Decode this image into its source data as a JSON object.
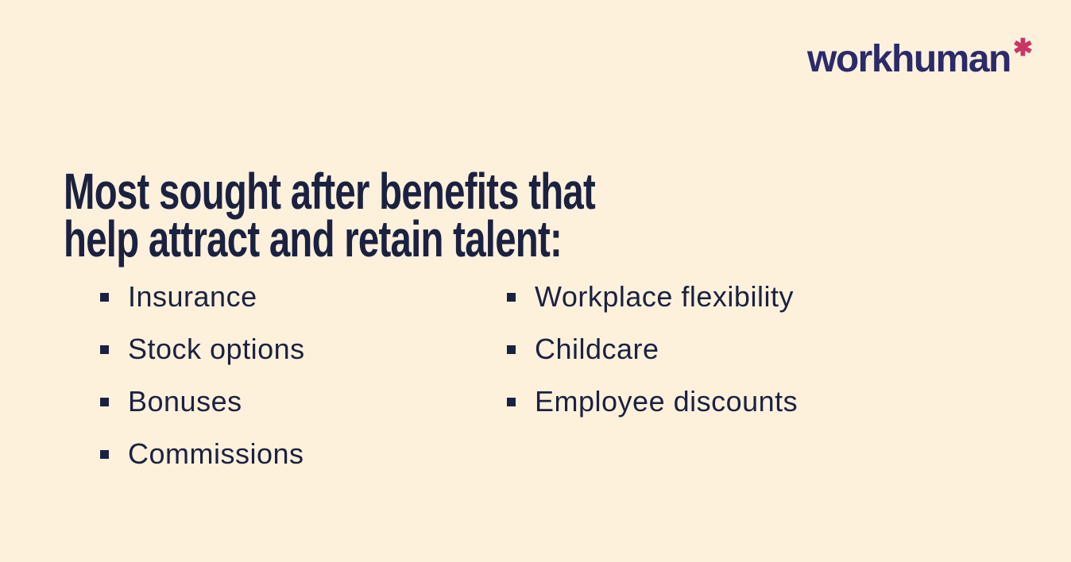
{
  "canvas": {
    "background_color": "#fdf1dc"
  },
  "logo": {
    "text": "workhuman",
    "asterisk_glyph": "✱",
    "text_color": "#2b2a6a",
    "asterisk_color": "#c93666"
  },
  "heading": {
    "line1": "Most sought after benefits that",
    "line2": "help attract and retain talent:",
    "color": "#1b2140"
  },
  "benefits": {
    "left": [
      "Insurance",
      "Stock options",
      "Bonuses",
      "Commissions"
    ],
    "right": [
      "Workplace flexibility",
      "Childcare",
      "Employee discounts"
    ]
  }
}
